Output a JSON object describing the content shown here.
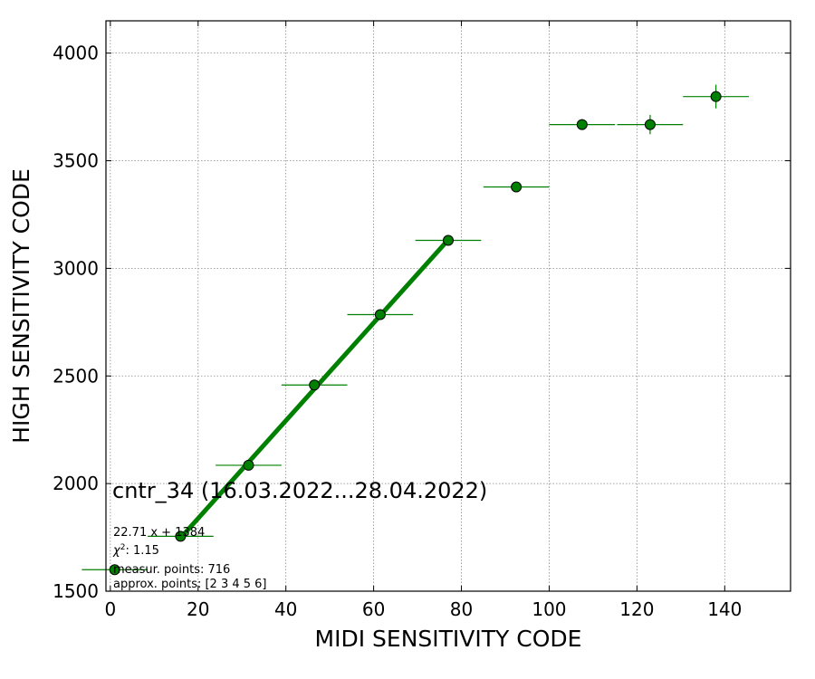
{
  "chart_data": {
    "type": "scatter",
    "xlabel": "MIDI SENSITIVITY CODE",
    "ylabel": "HIGH SENSITIVITY CODE",
    "xlim": [
      -1,
      155
    ],
    "ylim": [
      1500,
      4150
    ],
    "xticks": [
      0,
      20,
      40,
      60,
      80,
      100,
      120,
      140
    ],
    "yticks": [
      1500,
      2000,
      2500,
      3000,
      3500,
      4000
    ],
    "grid": true,
    "points": [
      {
        "x": 1,
        "y": 1600,
        "xerr": 7.5,
        "yerr": 12
      },
      {
        "x": 16,
        "y": 1755,
        "xerr": 7.5,
        "yerr": 15
      },
      {
        "x": 31.5,
        "y": 2085,
        "xerr": 7.5,
        "yerr": 15
      },
      {
        "x": 46.5,
        "y": 2458,
        "xerr": 7.5,
        "yerr": 15
      },
      {
        "x": 61.5,
        "y": 2785,
        "xerr": 7.5,
        "yerr": 18
      },
      {
        "x": 77,
        "y": 3130,
        "xerr": 7.5,
        "yerr": 20
      },
      {
        "x": 92.5,
        "y": 3378,
        "xerr": 7.5,
        "yerr": 22
      },
      {
        "x": 107.5,
        "y": 3668,
        "xerr": 7.5,
        "yerr": 25
      },
      {
        "x": 123,
        "y": 3668,
        "xerr": 7.5,
        "yerr": 45
      },
      {
        "x": 138,
        "y": 3798,
        "xerr": 7.5,
        "yerr": 55
      }
    ],
    "fit": {
      "slope": 22.71,
      "intercept": 1384,
      "x_range": [
        16,
        77
      ]
    },
    "colors": {
      "series": "#008000",
      "marker_edge": "#000000",
      "grid": "#888888"
    },
    "annotations": {
      "title": "cntr_34 (16.03.2022...28.04.2022)",
      "fit_label": "22.71 x + 1384",
      "chi2_prefix": "χ",
      "chi2_suffix": ": 1.15",
      "chi2_exponent": "2",
      "measured": "measur. points: 716",
      "approx": "approx. points: [2 3 4 5 6]"
    }
  }
}
